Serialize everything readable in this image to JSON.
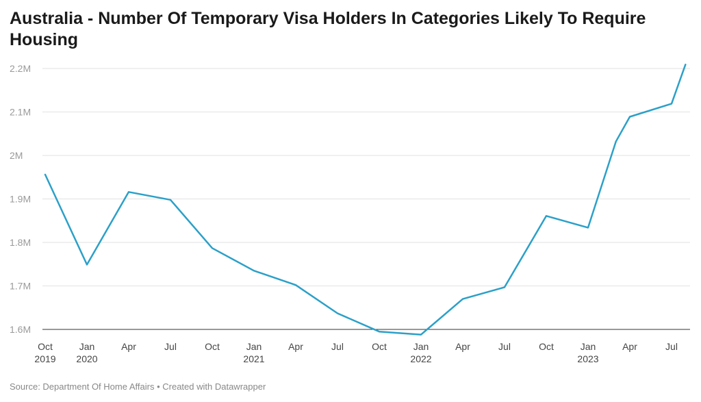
{
  "title": "Australia - Number Of Temporary Visa Holders In Categories Likely To Require Housing",
  "footer": {
    "source": "Source: Department Of Home Affairs",
    "separator": " • ",
    "credit": "Created with Datawrapper"
  },
  "chart_data": {
    "type": "line",
    "title": "Australia - Number Of Temporary Visa Holders In Categories Likely To Require Housing",
    "xlabel": "",
    "ylabel": "",
    "ylim": [
      1600000,
      2200000
    ],
    "grid": true,
    "line_color": "#2ba0c8",
    "y_ticks": [
      {
        "value": 1600000,
        "label": "1.6M"
      },
      {
        "value": 1700000,
        "label": "1.7M"
      },
      {
        "value": 1800000,
        "label": "1.8M"
      },
      {
        "value": 1900000,
        "label": "1.9M"
      },
      {
        "value": 2000000,
        "label": "2M"
      },
      {
        "value": 2100000,
        "label": "2.1M"
      },
      {
        "value": 2200000,
        "label": "2.2M"
      }
    ],
    "x_ticks": [
      {
        "date": "2019-10",
        "label": "Oct",
        "year": "2019"
      },
      {
        "date": "2020-01",
        "label": "Jan",
        "year": "2020"
      },
      {
        "date": "2020-04",
        "label": "Apr",
        "year": ""
      },
      {
        "date": "2020-07",
        "label": "Jul",
        "year": ""
      },
      {
        "date": "2020-10",
        "label": "Oct",
        "year": ""
      },
      {
        "date": "2021-01",
        "label": "Jan",
        "year": "2021"
      },
      {
        "date": "2021-04",
        "label": "Apr",
        "year": ""
      },
      {
        "date": "2021-07",
        "label": "Jul",
        "year": ""
      },
      {
        "date": "2021-10",
        "label": "Oct",
        "year": ""
      },
      {
        "date": "2022-01",
        "label": "Jan",
        "year": "2022"
      },
      {
        "date": "2022-04",
        "label": "Apr",
        "year": ""
      },
      {
        "date": "2022-07",
        "label": "Jul",
        "year": ""
      },
      {
        "date": "2022-10",
        "label": "Oct",
        "year": ""
      },
      {
        "date": "2023-01",
        "label": "Jan",
        "year": "2023"
      },
      {
        "date": "2023-04",
        "label": "Apr",
        "year": ""
      },
      {
        "date": "2023-07",
        "label": "Jul",
        "year": ""
      }
    ],
    "series": [
      {
        "x": [
          "2019-10",
          "2020-01",
          "2020-04",
          "2020-07",
          "2020-10",
          "2021-01",
          "2021-04",
          "2021-07",
          "2021-10",
          "2022-01",
          "2022-04",
          "2022-07",
          "2022-10",
          "2023-01",
          "2023-03",
          "2023-04",
          "2023-07",
          "2023-08"
        ],
        "values": [
          1956000,
          1749000,
          1916000,
          1898000,
          1787000,
          1735000,
          1702000,
          1637000,
          1595000,
          1588000,
          1670000,
          1697000,
          1861000,
          1834000,
          2032000,
          2089000,
          2119000,
          2209000
        ]
      }
    ]
  }
}
